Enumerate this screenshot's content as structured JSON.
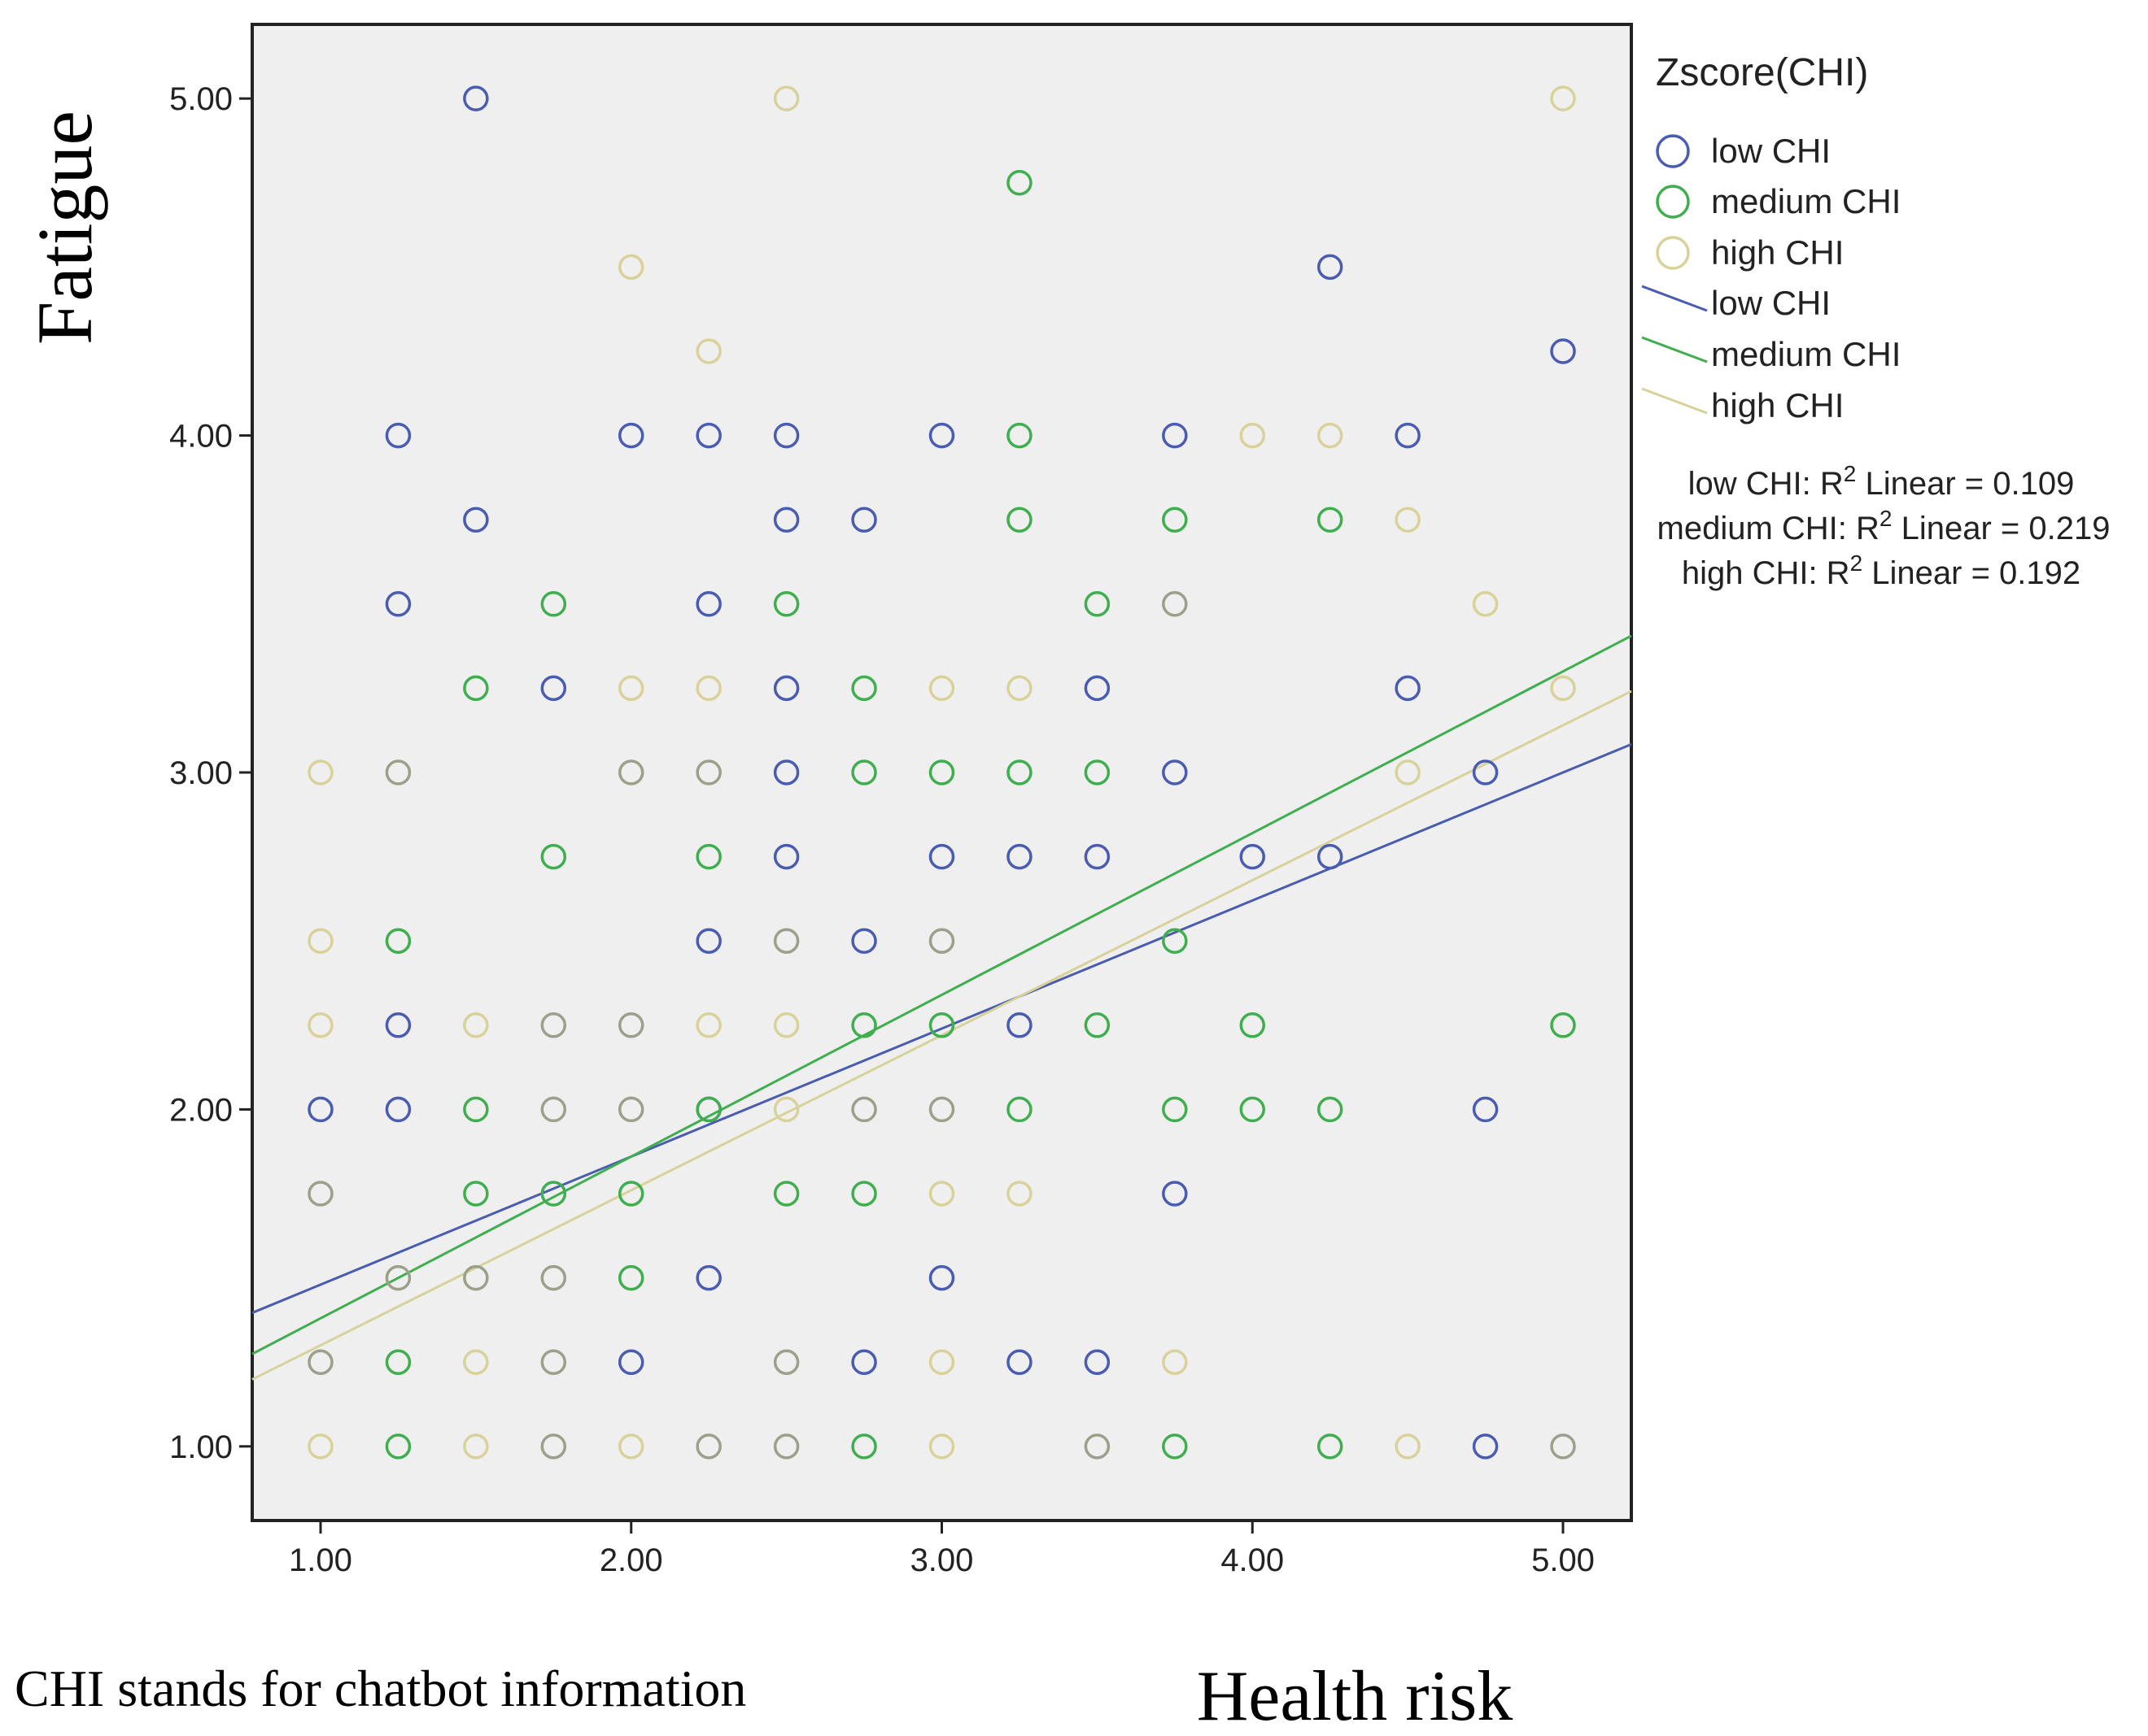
{
  "chart_data": {
    "type": "scatter",
    "xlabel": "Health risk",
    "ylabel": "Fatigue",
    "xlim": [
      0.78,
      5.22
    ],
    "ylim": [
      0.78,
      5.22
    ],
    "xticks": [
      "1.00",
      "2.00",
      "3.00",
      "4.00",
      "5.00"
    ],
    "yticks": [
      "1.00",
      "2.00",
      "3.00",
      "4.00",
      "5.00"
    ],
    "note": "CHI stands for chatbot information",
    "legend": {
      "title": "Zscore(CHI)",
      "markers": [
        "low CHI",
        "medium CHI",
        "high CHI"
      ],
      "lines": [
        "low CHI",
        "medium CHI",
        "high CHI"
      ],
      "r2": [
        {
          "group": "low CHI: R",
          "rest": " Linear = 0.109"
        },
        {
          "group": "medium CHI: R",
          "rest": " Linear = 0.219"
        },
        {
          "group": "high CHI: R",
          "rest": " Linear = 0.192"
        }
      ],
      "superscript": "2"
    },
    "series": [
      {
        "name": "low CHI",
        "color": "#4a5cb0",
        "fit": {
          "intercept": 1.1,
          "slope": 0.38,
          "r2": 0.109
        },
        "points": [
          [
            1.5,
            5.0
          ],
          [
            4.25,
            4.5
          ],
          [
            5.0,
            4.25
          ],
          [
            1.25,
            4.0
          ],
          [
            2.0,
            4.0
          ],
          [
            2.25,
            4.0
          ],
          [
            2.5,
            4.0
          ],
          [
            3.0,
            4.0
          ],
          [
            3.75,
            4.0
          ],
          [
            4.5,
            4.0
          ],
          [
            1.5,
            3.75
          ],
          [
            2.5,
            3.75
          ],
          [
            2.75,
            3.75
          ],
          [
            1.25,
            3.5
          ],
          [
            2.25,
            3.5
          ],
          [
            1.75,
            3.25
          ],
          [
            2.5,
            3.25
          ],
          [
            3.5,
            3.25
          ],
          [
            4.5,
            3.25
          ],
          [
            2.5,
            3.0
          ],
          [
            3.75,
            3.0
          ],
          [
            4.75,
            3.0
          ],
          [
            2.5,
            2.75
          ],
          [
            3.0,
            2.75
          ],
          [
            3.25,
            2.75
          ],
          [
            3.5,
            2.75
          ],
          [
            4.0,
            2.75
          ],
          [
            4.25,
            2.75
          ],
          [
            2.25,
            2.5
          ],
          [
            2.75,
            2.5
          ],
          [
            1.25,
            2.25
          ],
          [
            3.25,
            2.25
          ],
          [
            1.0,
            2.0
          ],
          [
            1.25,
            2.0
          ],
          [
            2.25,
            2.0
          ],
          [
            4.75,
            2.0
          ],
          [
            3.75,
            1.75
          ],
          [
            2.25,
            1.5
          ],
          [
            3.0,
            1.5
          ],
          [
            2.0,
            1.25
          ],
          [
            2.75,
            1.25
          ],
          [
            3.25,
            1.25
          ],
          [
            3.5,
            1.25
          ],
          [
            4.75,
            1.0
          ]
        ]
      },
      {
        "name": "medium CHI",
        "color": "#3fae4f",
        "fit": {
          "intercept": 0.9,
          "slope": 0.48,
          "r2": 0.219
        },
        "points": [
          [
            3.25,
            4.75
          ],
          [
            3.25,
            4.0
          ],
          [
            3.25,
            3.75
          ],
          [
            3.75,
            3.75
          ],
          [
            4.25,
            3.75
          ],
          [
            1.75,
            3.5
          ],
          [
            2.5,
            3.5
          ],
          [
            3.5,
            3.5
          ],
          [
            1.5,
            3.25
          ],
          [
            2.75,
            3.25
          ],
          [
            2.75,
            3.0
          ],
          [
            3.0,
            3.0
          ],
          [
            3.25,
            3.0
          ],
          [
            3.5,
            3.0
          ],
          [
            1.75,
            2.75
          ],
          [
            2.25,
            2.75
          ],
          [
            1.25,
            2.5
          ],
          [
            3.75,
            2.5
          ],
          [
            2.75,
            2.25
          ],
          [
            3.0,
            2.25
          ],
          [
            3.5,
            2.25
          ],
          [
            4.0,
            2.25
          ],
          [
            5.0,
            2.25
          ],
          [
            1.5,
            2.0
          ],
          [
            2.25,
            2.0
          ],
          [
            3.25,
            2.0
          ],
          [
            3.75,
            2.0
          ],
          [
            4.0,
            2.0
          ],
          [
            4.25,
            2.0
          ],
          [
            1.5,
            1.75
          ],
          [
            1.75,
            1.75
          ],
          [
            2.0,
            1.75
          ],
          [
            2.5,
            1.75
          ],
          [
            2.75,
            1.75
          ],
          [
            2.0,
            1.5
          ],
          [
            1.25,
            1.25
          ],
          [
            1.25,
            1.0
          ],
          [
            2.75,
            1.0
          ],
          [
            3.75,
            1.0
          ],
          [
            4.25,
            1.0
          ]
        ]
      },
      {
        "name": "high CHI",
        "color": "#d8d29a",
        "fit": {
          "intercept": 0.84,
          "slope": 0.46,
          "r2": 0.192
        },
        "points": [
          [
            2.5,
            5.0
          ],
          [
            5.0,
            5.0
          ],
          [
            2.0,
            4.5
          ],
          [
            2.25,
            4.25
          ],
          [
            4.0,
            4.0
          ],
          [
            4.25,
            4.0
          ],
          [
            4.5,
            3.75
          ],
          [
            4.75,
            3.5
          ],
          [
            2.0,
            3.25
          ],
          [
            2.25,
            3.25
          ],
          [
            3.0,
            3.25
          ],
          [
            3.25,
            3.25
          ],
          [
            5.0,
            3.25
          ],
          [
            1.0,
            3.0
          ],
          [
            4.5,
            3.0
          ],
          [
            1.0,
            2.5
          ],
          [
            1.0,
            2.25
          ],
          [
            1.5,
            2.25
          ],
          [
            2.25,
            2.25
          ],
          [
            2.5,
            2.25
          ],
          [
            2.5,
            2.0
          ],
          [
            3.0,
            1.75
          ],
          [
            3.25,
            1.75
          ],
          [
            3.75,
            1.25
          ],
          [
            1.5,
            1.25
          ],
          [
            3.0,
            1.25
          ],
          [
            1.0,
            1.0
          ],
          [
            1.5,
            1.0
          ],
          [
            2.0,
            1.0
          ],
          [
            3.0,
            1.0
          ],
          [
            4.5,
            1.0
          ]
        ]
      },
      {
        "name": "overlap",
        "color": "#9aa08a",
        "points": [
          [
            1.25,
            3.0
          ],
          [
            2.0,
            3.0
          ],
          [
            2.25,
            3.0
          ],
          [
            3.75,
            3.5
          ],
          [
            2.5,
            2.5
          ],
          [
            3.0,
            2.5
          ],
          [
            1.75,
            2.25
          ],
          [
            2.0,
            2.25
          ],
          [
            1.75,
            2.0
          ],
          [
            2.0,
            2.0
          ],
          [
            2.75,
            2.0
          ],
          [
            3.0,
            2.0
          ],
          [
            1.0,
            1.75
          ],
          [
            1.25,
            1.5
          ],
          [
            1.5,
            1.5
          ],
          [
            1.75,
            1.5
          ],
          [
            1.0,
            1.25
          ],
          [
            1.75,
            1.25
          ],
          [
            2.5,
            1.25
          ],
          [
            1.75,
            1.0
          ],
          [
            2.25,
            1.0
          ],
          [
            2.5,
            1.0
          ],
          [
            3.5,
            1.0
          ],
          [
            5.0,
            1.0
          ]
        ]
      }
    ]
  }
}
